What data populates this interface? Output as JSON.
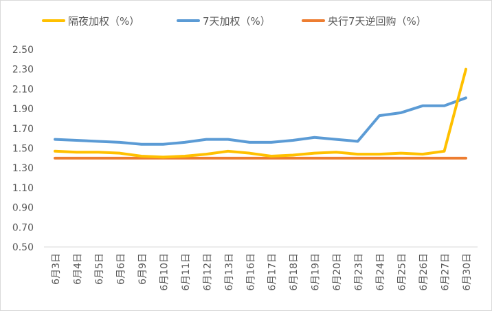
{
  "chart_data": {
    "type": "line",
    "title": "",
    "xlabel": "",
    "ylabel": "",
    "ylim": [
      0.5,
      2.5
    ],
    "yticks": [
      "0.50",
      "0.70",
      "0.90",
      "1.10",
      "1.30",
      "1.50",
      "1.70",
      "1.90",
      "2.10",
      "2.30",
      "2.50"
    ],
    "grid": false,
    "legend": "top",
    "categories": [
      "6月3日",
      "6月4日",
      "6月5日",
      "6月6日",
      "6月9日",
      "6月10日",
      "6月11日",
      "6月12日",
      "6月13日",
      "6月16日",
      "6月17日",
      "6月18日",
      "6月19日",
      "6月20日",
      "6月23日",
      "6月24日",
      "6月25日",
      "6月26日",
      "6月27日",
      "6月30日"
    ],
    "series": [
      {
        "name": "隔夜加权（%）",
        "color": "#FFC000",
        "values": [
          1.47,
          1.46,
          1.46,
          1.45,
          1.42,
          1.41,
          1.42,
          1.44,
          1.47,
          1.45,
          1.42,
          1.43,
          1.45,
          1.46,
          1.44,
          1.44,
          1.45,
          1.44,
          1.47,
          2.3
        ]
      },
      {
        "name": "7天加权（%）",
        "color": "#5B9BD5",
        "values": [
          1.59,
          1.58,
          1.57,
          1.56,
          1.54,
          1.54,
          1.56,
          1.59,
          1.59,
          1.56,
          1.56,
          1.58,
          1.61,
          1.59,
          1.57,
          1.83,
          1.86,
          1.93,
          1.93,
          2.01
        ]
      },
      {
        "name": "央行7天逆回购（%）",
        "color": "#ED7D31",
        "values": [
          1.4,
          1.4,
          1.4,
          1.4,
          1.4,
          1.4,
          1.4,
          1.4,
          1.4,
          1.4,
          1.4,
          1.4,
          1.4,
          1.4,
          1.4,
          1.4,
          1.4,
          1.4,
          1.4,
          1.4
        ]
      }
    ]
  }
}
